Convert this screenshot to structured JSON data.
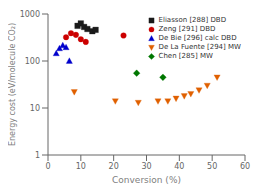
{
  "chart_data": {
    "type": "scatter",
    "xlabel": "Conversion (%)",
    "ylabel": "Energy cost (eV/molecule CO₂)",
    "xlim": [
      0,
      60
    ],
    "xticks": [
      0,
      10,
      20,
      30,
      40,
      50,
      60
    ],
    "ylim": [
      1,
      1000
    ],
    "yticks": [
      1,
      10,
      100,
      1000
    ],
    "log": "y",
    "grid": false,
    "legend": "upper right",
    "series": [
      {
        "name": "Eliasson [288] DBD",
        "color": "#1a1a1a",
        "marker": "square",
        "x": [
          9.0,
          10.0,
          11.0,
          12.0,
          13.5,
          14.5
        ],
        "values": [
          560,
          630,
          530,
          480,
          430,
          460
        ]
      },
      {
        "name": "Zeng [291] DBD",
        "color": "#cc0000",
        "marker": "circle",
        "x": [
          5.5,
          7.0,
          8.5,
          10.0,
          11.5,
          23.0
        ],
        "values": [
          320,
          390,
          360,
          290,
          255,
          350
        ]
      },
      {
        "name": "De Bie [296] calc DBD",
        "color": "#0000cc",
        "marker": "triangle",
        "x": [
          2.5,
          3.5,
          4.5,
          5.5,
          6.5
        ],
        "values": [
          145,
          185,
          215,
          195,
          100
        ]
      },
      {
        "name": "De La Fuente [294] MW",
        "color": "#e06000",
        "marker": "triangle_down",
        "x": [
          8.0,
          20.5,
          27.5,
          33.5,
          36.5,
          39.0,
          41.5,
          43.5,
          46.0,
          48.5,
          51.5
        ],
        "values": [
          22,
          14,
          13,
          14,
          14,
          16,
          18,
          20,
          24,
          30,
          45
        ]
      },
      {
        "name": "Chen [285] MW",
        "color": "#007700",
        "marker": "diamond",
        "x": [
          27.0,
          35.0
        ],
        "values": [
          55,
          45
        ]
      }
    ]
  }
}
